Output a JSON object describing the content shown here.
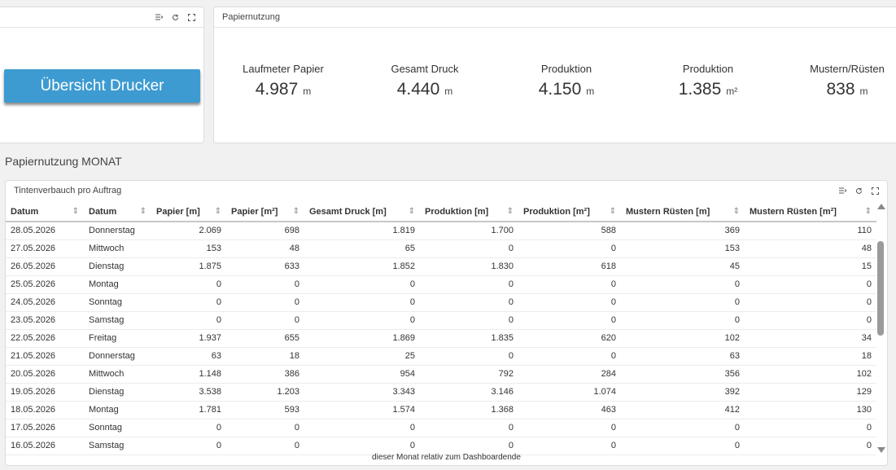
{
  "left_panel": {
    "button_label": "Übersicht Drucker"
  },
  "kpi_panel": {
    "title": "Papiernutzung",
    "kpis": [
      {
        "label": "Laufmeter Papier",
        "value": "4.987",
        "unit": "m"
      },
      {
        "label": "Gesamt Druck",
        "value": "4.440",
        "unit": "m"
      },
      {
        "label": "Produktion",
        "value": "4.150",
        "unit": "m"
      },
      {
        "label": "Produktion",
        "value": "1.385",
        "unit": "m²"
      },
      {
        "label": "Mustern/Rüsten",
        "value": "838",
        "unit": "m"
      }
    ]
  },
  "section_title": "Papiernutzung MONAT",
  "table_panel": {
    "title": "Tintenverbauch pro Auftrag",
    "columns": [
      "Datum",
      "Datum",
      "Papier [m]",
      "Papier [m²]",
      "Gesamt Druck [m]",
      "Produktion [m]",
      "Produktion [m²]",
      "Mustern Rüsten [m]",
      "Mustern Rüsten [m²]"
    ],
    "rows": [
      [
        "28.05.2026",
        "Donnerstag",
        "2.069",
        "698",
        "1.819",
        "1.700",
        "588",
        "369",
        "110"
      ],
      [
        "27.05.2026",
        "Mittwoch",
        "153",
        "48",
        "65",
        "0",
        "0",
        "153",
        "48"
      ],
      [
        "26.05.2026",
        "Dienstag",
        "1.875",
        "633",
        "1.852",
        "1.830",
        "618",
        "45",
        "15"
      ],
      [
        "25.05.2026",
        "Montag",
        "0",
        "0",
        "0",
        "0",
        "0",
        "0",
        "0"
      ],
      [
        "24.05.2026",
        "Sonntag",
        "0",
        "0",
        "0",
        "0",
        "0",
        "0",
        "0"
      ],
      [
        "23.05.2026",
        "Samstag",
        "0",
        "0",
        "0",
        "0",
        "0",
        "0",
        "0"
      ],
      [
        "22.05.2026",
        "Freitag",
        "1.937",
        "655",
        "1.869",
        "1.835",
        "620",
        "102",
        "34"
      ],
      [
        "21.05.2026",
        "Donnerstag",
        "63",
        "18",
        "25",
        "0",
        "0",
        "63",
        "18"
      ],
      [
        "20.05.2026",
        "Mittwoch",
        "1.148",
        "386",
        "954",
        "792",
        "284",
        "356",
        "102"
      ],
      [
        "19.05.2026",
        "Dienstag",
        "3.538",
        "1.203",
        "3.343",
        "3.146",
        "1.074",
        "392",
        "129"
      ],
      [
        "18.05.2026",
        "Montag",
        "1.781",
        "593",
        "1.574",
        "1.368",
        "463",
        "412",
        "130"
      ],
      [
        "17.05.2026",
        "Sonntag",
        "0",
        "0",
        "0",
        "0",
        "0",
        "0",
        "0"
      ],
      [
        "16.05.2026",
        "Samstag",
        "0",
        "0",
        "0",
        "0",
        "0",
        "0",
        "0"
      ]
    ],
    "footer_note": "dieser Monat relativ zum Dashboardende"
  }
}
